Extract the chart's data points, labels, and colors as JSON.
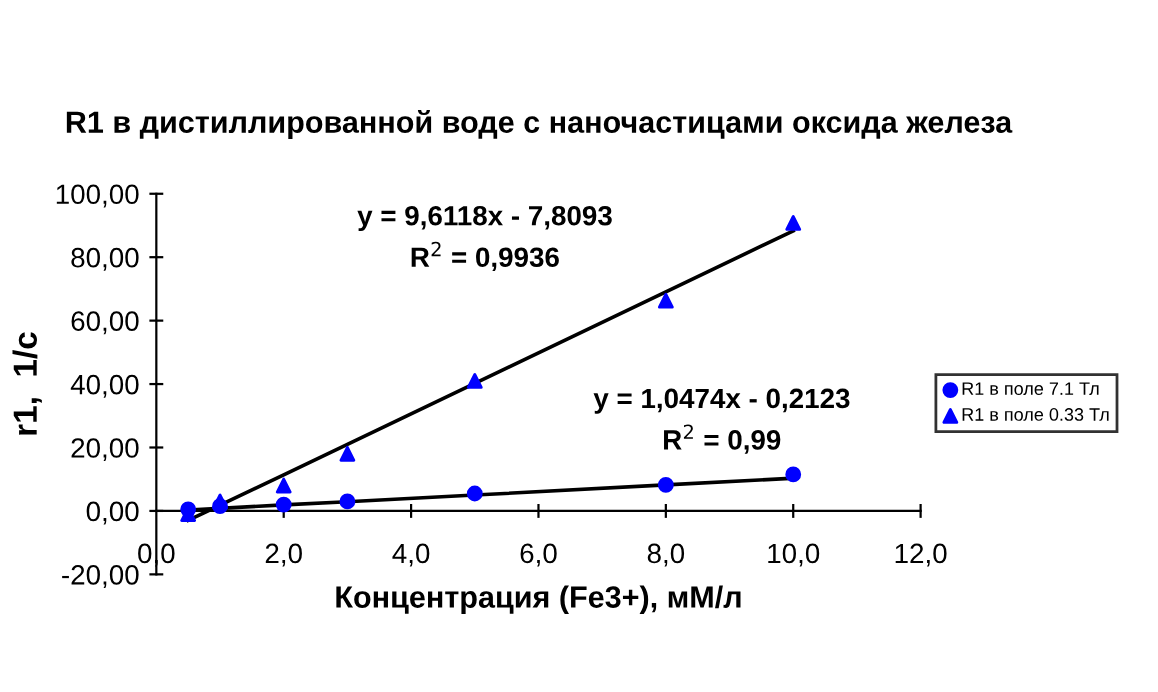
{
  "chart_data": {
    "type": "scatter",
    "title": "R1 в дистиллированной воде с наночастицами оксида железа",
    "xlabel": "Концентрация (Fe3+), мМ/л",
    "ylabel": "r1,  1/c",
    "x": [
      0.5,
      1,
      2,
      3,
      5,
      8,
      10
    ],
    "series": [
      {
        "name": "R1 в поле 7.1 Тл",
        "color": "#0000ff",
        "marker": "circle",
        "values": [
          0.5,
          1.5,
          2,
          3,
          5.5,
          8.2,
          11.5
        ]
      },
      {
        "name": "R1 в поле 0.33 Тл",
        "color": "#0000ff",
        "marker": "triangle",
        "values": [
          -1,
          3,
          8,
          18,
          41,
          66.3,
          90.8
        ]
      },
      {
        "type": "line",
        "color": "#000000",
        "marker": "none",
        "values": [
          0.3,
          0.8,
          1.9,
          2.9,
          5.0,
          8.2,
          10.3
        ]
      },
      {
        "type": "line",
        "color": "#000000",
        "marker": "none",
        "values": [
          -3.0,
          1.8,
          11.4,
          21.0,
          40.2,
          69.1,
          88.3
        ]
      }
    ],
    "xlim": [
      0,
      12
    ],
    "ylim": [
      -20,
      100
    ],
    "xticks": [
      {
        "value": 0,
        "label": "0,0"
      },
      {
        "value": 2,
        "label": "2,0"
      },
      {
        "value": 4,
        "label": "4,0"
      },
      {
        "value": 6,
        "label": "6,0"
      },
      {
        "value": 8,
        "label": "8,0"
      },
      {
        "value": 10,
        "label": "10,0"
      },
      {
        "value": 12,
        "label": "12,0"
      }
    ],
    "yticks": [
      {
        "value": -20,
        "label": "-20,00"
      },
      {
        "value": 0,
        "label": "0,00"
      },
      {
        "value": 20,
        "label": "20,00"
      },
      {
        "value": 40,
        "label": "40,00"
      },
      {
        "value": 60,
        "label": "60,00"
      },
      {
        "value": 80,
        "label": "80,00"
      },
      {
        "value": 100,
        "label": "100,00"
      }
    ],
    "annotations": [
      "y = 9,6118x - 7,8093\nR$^{2}$ = 0,9936",
      "y = 1,0474x - 0,2123\nR$^{2}$ = 0,99"
    ],
    "legend": "right",
    "grid": false
  }
}
